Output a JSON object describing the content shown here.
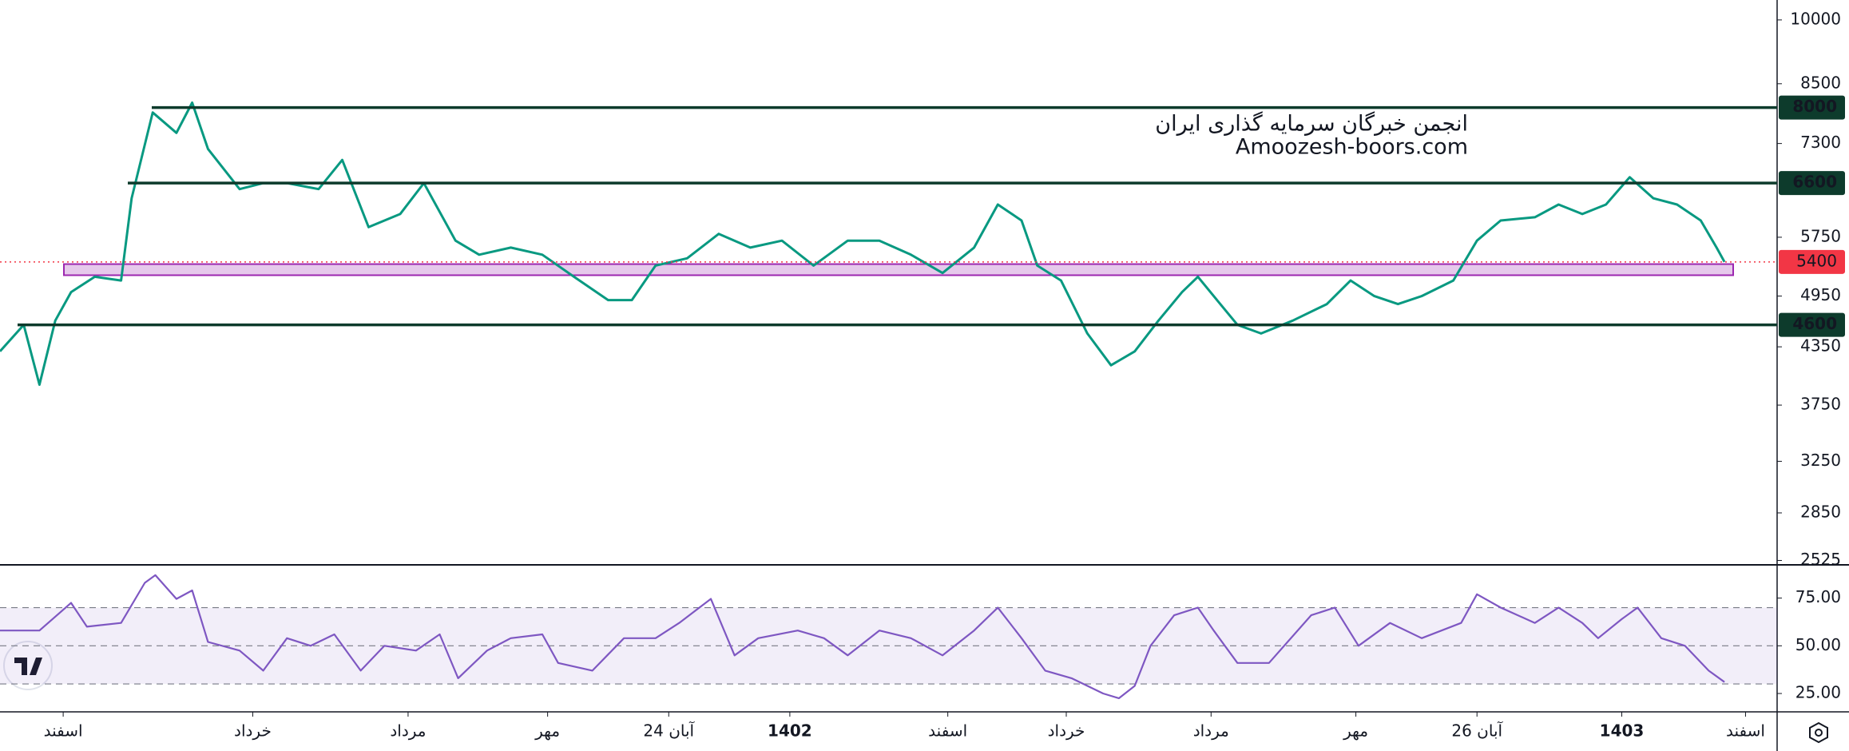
{
  "chart_data": [
    {
      "type": "line",
      "watermark": [
        "انجمن خبرگان سرمایه گذاری ایران",
        "Amoozesh-boors.com"
      ],
      "x": [
        0,
        9,
        15,
        21,
        27,
        36,
        46,
        50,
        58,
        67,
        73,
        79,
        91,
        100,
        109,
        121,
        130,
        140,
        152,
        161,
        173,
        182,
        194,
        206,
        218,
        231,
        240,
        249,
        261,
        273,
        285,
        297,
        309,
        322,
        334,
        346,
        358,
        370,
        379,
        388,
        394,
        403,
        413,
        422,
        431,
        440,
        449,
        455,
        461,
        470,
        479,
        491,
        504,
        513,
        522,
        531,
        540,
        552,
        561,
        570,
        583,
        592,
        601,
        610,
        619,
        628,
        637,
        646,
        652,
        655
      ],
      "values": [
        4300,
        4600,
        3950,
        4650,
        5000,
        5200,
        5150,
        6350,
        7900,
        7500,
        8100,
        7200,
        6500,
        6600,
        6600,
        6500,
        7000,
        5900,
        6100,
        6600,
        5700,
        5500,
        5600,
        5500,
        5200,
        4900,
        4900,
        5350,
        5450,
        5800,
        5600,
        5700,
        5350,
        5700,
        5700,
        5500,
        5250,
        5600,
        6250,
        6000,
        5350,
        5150,
        4500,
        4150,
        4300,
        4650,
        5000,
        5200,
        4950,
        4600,
        4500,
        4650,
        4850,
        5150,
        4950,
        4850,
        4950,
        5150,
        5700,
        6000,
        6050,
        6250,
        6100,
        6250,
        6700,
        6350,
        6250,
        6000,
        5600,
        5400
      ],
      "color": "#089981",
      "log_scale": true,
      "xlim": [
        0,
        675
      ],
      "ylim": [
        2507,
        10520
      ],
      "yticks": [
        2525,
        2850,
        3250,
        3750,
        4350,
        4950,
        5750,
        7300,
        8500,
        10000
      ],
      "xticks": [
        {
          "value": 24,
          "label": "اسفند"
        },
        {
          "value": 96,
          "label": "خرداد"
        },
        {
          "value": 155,
          "label": "مرداد"
        },
        {
          "value": 208,
          "label": "مهر"
        },
        {
          "value": 254,
          "label": "24 آبان"
        },
        {
          "value": 300,
          "label": "1402"
        },
        {
          "value": 360,
          "label": "اسفند"
        },
        {
          "value": 405,
          "label": "خرداد"
        },
        {
          "value": 460,
          "label": "مرداد"
        },
        {
          "value": 515,
          "label": "مهر"
        },
        {
          "value": 561,
          "label": "26 آبان"
        },
        {
          "value": 616,
          "label": "1403"
        },
        {
          "value": 663,
          "label": "اسفند"
        }
      ],
      "levels": [
        8000,
        6600,
        4600
      ],
      "level_color": "#0d3b2c",
      "last_price": 5400,
      "last_price_color": "#f23645",
      "zone": [
        5220,
        5370
      ],
      "zone_color": "#9c27b0"
    },
    {
      "type": "line",
      "x": [
        0,
        15,
        27,
        33,
        46,
        55,
        59,
        67,
        73,
        79,
        91,
        100,
        109,
        118,
        127,
        137,
        146,
        158,
        167,
        174,
        185,
        194,
        206,
        212,
        225,
        237,
        249,
        258,
        270,
        279,
        288,
        303,
        313,
        322,
        334,
        346,
        358,
        370,
        379,
        388,
        397,
        407,
        419,
        425,
        431,
        437,
        446,
        455,
        461,
        470,
        482,
        498,
        507,
        516,
        528,
        540,
        555,
        561,
        570,
        583,
        592,
        601,
        607,
        616,
        622,
        631,
        640,
        649,
        655
      ],
      "values": [
        58,
        58,
        72.5,
        60,
        62,
        83,
        87,
        74.6,
        79,
        52,
        47.5,
        37,
        54,
        50,
        56,
        37,
        50,
        47.5,
        56,
        33,
        47.5,
        54,
        56,
        41,
        37,
        54,
        54,
        62,
        74.6,
        45,
        54,
        58,
        54,
        45,
        58,
        54,
        45,
        58,
        70,
        54,
        37,
        33,
        25,
        22.5,
        29,
        50,
        66,
        70,
        58,
        41,
        41,
        66,
        70,
        50,
        62,
        54,
        62,
        77,
        70,
        62,
        70,
        62,
        54,
        64,
        70,
        54,
        50,
        37,
        31
      ],
      "color": "#7e57c2",
      "xlim": [
        0,
        675
      ],
      "ylim": [
        15.8,
        92
      ],
      "yticks": [
        {
          "value": 25,
          "label": "25.00"
        },
        {
          "value": 50,
          "label": "50.00"
        },
        {
          "value": 75,
          "label": "75.00"
        }
      ],
      "band": [
        30,
        70
      ],
      "guides": [
        30,
        50,
        70
      ]
    }
  ]
}
